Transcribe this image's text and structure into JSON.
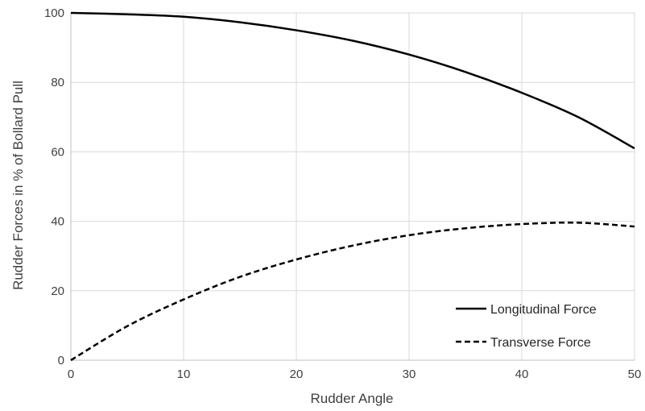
{
  "chart_data": {
    "type": "line",
    "title": "",
    "xlabel": "Rudder Angle",
    "ylabel": "Rudder Forces in % of Bollard Pull",
    "xlim": [
      0,
      50
    ],
    "ylim": [
      0,
      100
    ],
    "xticks": [
      0,
      10,
      20,
      30,
      40,
      50
    ],
    "yticks": [
      0,
      20,
      40,
      60,
      80,
      100
    ],
    "grid": true,
    "legend_position": "bottom-right",
    "series": [
      {
        "name": "Longitudinal Force",
        "style": "solid",
        "color": "#000000",
        "x": [
          0,
          5,
          10,
          15,
          20,
          25,
          30,
          35,
          40,
          45,
          50
        ],
        "y": [
          100,
          99.6,
          98.9,
          97.3,
          95,
          92,
          88,
          83,
          77,
          70,
          61
        ]
      },
      {
        "name": "Transverse Force",
        "style": "dashed",
        "color": "#000000",
        "x": [
          0,
          5,
          10,
          15,
          20,
          25,
          30,
          35,
          40,
          45,
          50
        ],
        "y": [
          0,
          9.8,
          17.5,
          24,
          29,
          33,
          36,
          38,
          39.2,
          39.6,
          38.5
        ]
      }
    ]
  }
}
